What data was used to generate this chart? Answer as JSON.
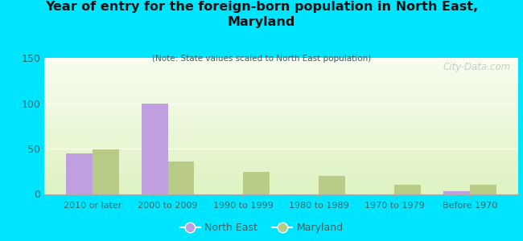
{
  "title": "Year of entry for the foreign-born population in North East,\nMaryland",
  "subtitle": "(Note: State values scaled to North East population)",
  "categories": [
    "2010 or later",
    "2000 to 2009",
    "1990 to 1999",
    "1980 to 1989",
    "1970 to 1979",
    "Before 1970"
  ],
  "north_east_values": [
    45,
    100,
    0,
    0,
    0,
    3
  ],
  "maryland_values": [
    49,
    36,
    24,
    20,
    10,
    10
  ],
  "north_east_color": "#bf9fdf",
  "maryland_color": "#b8cc88",
  "background_outer": "#00e5ff",
  "plot_bg_top": "#f8faf0",
  "plot_bg_bottom": "#d8ecc8",
  "ylim": [
    0,
    150
  ],
  "yticks": [
    0,
    50,
    100,
    150
  ],
  "bar_width": 0.35,
  "legend_labels": [
    "North East",
    "Maryland"
  ],
  "watermark": "City-Data.com"
}
